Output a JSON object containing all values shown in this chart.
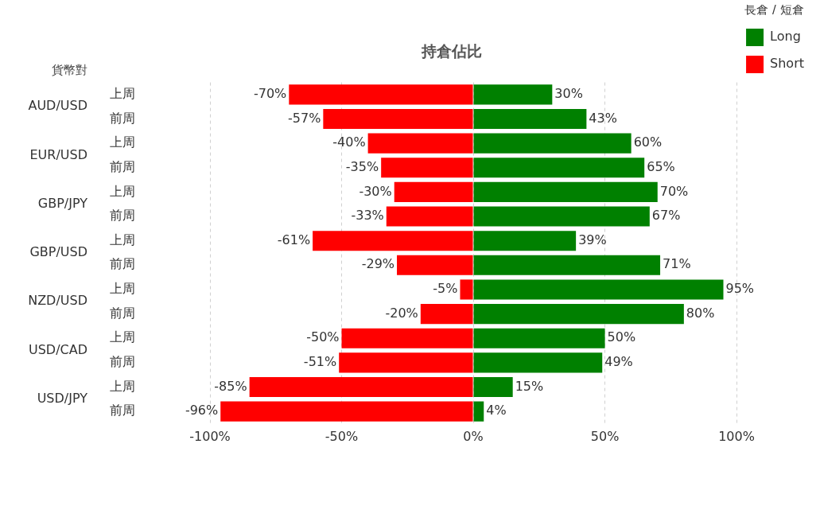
{
  "chart_data": {
    "type": "bar",
    "orientation": "horizontal",
    "stacked": true,
    "title": "持倉佔比",
    "ylabel": "貨幣對",
    "legend_title": "長倉 / 短倉",
    "legend": "top right",
    "grid": "x",
    "categories": [
      "上周",
      "前周",
      "上周",
      "前周",
      "上周",
      "前周",
      "上周",
      "前周",
      "上周",
      "前周",
      "上周",
      "前周",
      "上周",
      "前周"
    ],
    "annotations": [
      "AUD/USD",
      "EUR/USD",
      "GBP/JPY",
      "GBP/USD",
      "NZD/USD",
      "USD/CAD",
      "USD/JPY"
    ],
    "xlim": [
      -100,
      100
    ],
    "xticks": [
      {
        "value": -100,
        "label": "-100%"
      },
      {
        "value": -50,
        "label": "-50%"
      },
      {
        "value": 0,
        "label": "0%"
      },
      {
        "value": 50,
        "label": "50%"
      },
      {
        "value": 100,
        "label": "100%"
      }
    ],
    "series": [
      {
        "name": "Long",
        "color": "#008000",
        "values": [
          30,
          43,
          60,
          65,
          70,
          67,
          39,
          71,
          95,
          80,
          50,
          49,
          15,
          4
        ],
        "value_labels": [
          "30%",
          "43%",
          "60%",
          "65%",
          "70%",
          "67%",
          "39%",
          "71%",
          "95%",
          "80%",
          "50%",
          "49%",
          "15%",
          "4%"
        ]
      },
      {
        "name": "Short",
        "color": "#ff0000",
        "values": [
          -70,
          -57,
          -40,
          -35,
          -30,
          -33,
          -61,
          -29,
          -5,
          -20,
          -50,
          -51,
          -85,
          -96
        ],
        "value_labels": [
          "-70%",
          "-57%",
          "-40%",
          "-35%",
          "-30%",
          "-33%",
          "-61%",
          "-29%",
          "-5%",
          "-20%",
          "-50%",
          "-51%",
          "-85%",
          "-96%"
        ]
      }
    ]
  }
}
